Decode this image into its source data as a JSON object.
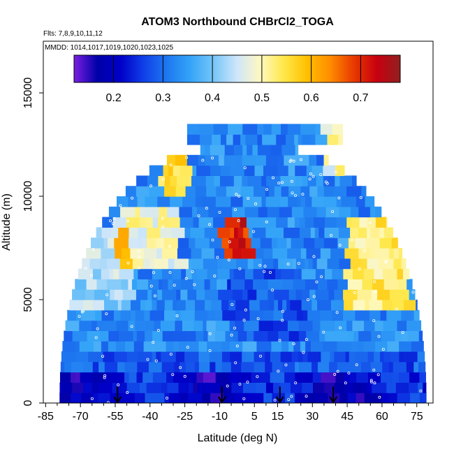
{
  "chart_data": {
    "type": "heatmap",
    "title": "ATOM3 Northbound CHBrCl2_TOGA",
    "subtitle_lines": [
      "Flts: 7,8,9,10,11,12",
      "MMDD: 1014,1017,1019,1020,1023,1025"
    ],
    "xlabel": "Latitude (deg N)",
    "ylabel": "Altitude (m)",
    "xlim": [
      -86,
      82
    ],
    "ylim": [
      0,
      17500
    ],
    "x_ticks": [
      -85,
      -70,
      -55,
      -40,
      -25,
      -10,
      5,
      15,
      30,
      45,
      60,
      75
    ],
    "x_minor_ticks": [
      -80,
      -75,
      -65,
      -60,
      -50,
      -45,
      -35,
      -30,
      -20,
      -15,
      -5,
      0,
      10,
      20,
      25,
      35,
      40,
      50,
      55,
      65,
      70,
      80
    ],
    "y_ticks": [
      0,
      5000,
      10000,
      15000
    ],
    "colorbar": {
      "min": 0.12,
      "max": 0.78,
      "ticks": [
        0.2,
        0.3,
        0.4,
        0.5,
        0.6,
        0.7
      ],
      "colors": [
        "#7a1fe0",
        "#0000a8",
        "#0000c8",
        "#1040e8",
        "#1e78f0",
        "#34a4f8",
        "#78c6f8",
        "#cfe6fa",
        "#fff8c0",
        "#ffe84a",
        "#ffc000",
        "#ff8c00",
        "#e83a00",
        "#c80010",
        "#902020"
      ]
    },
    "arrows_lat": [
      -54,
      -9,
      16,
      39
    ],
    "grid": false,
    "legend": "colorbar top"
  }
}
